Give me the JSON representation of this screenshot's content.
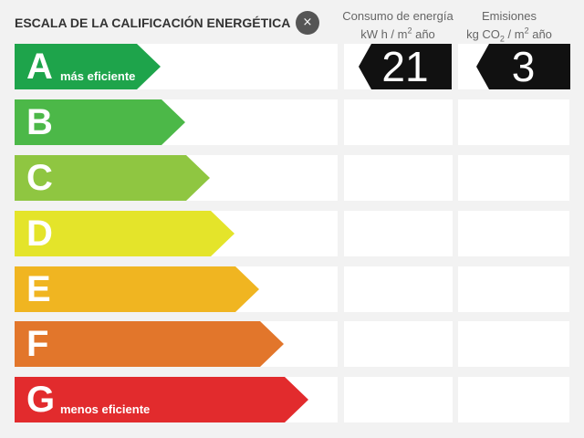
{
  "title": "ESCALA DE LA CALIFICACIÓN ENERGÉTICA",
  "close_label": "×",
  "columns": {
    "consumo": {
      "line1": "Consumo de energía",
      "unit_a": "kW h  / m",
      "unit_sup": "2",
      "unit_b": " año",
      "value": "21"
    },
    "emisiones": {
      "line1": "Emisiones",
      "unit_a": "kg CO",
      "unit_sub": "2",
      "unit_b": "  / m",
      "unit_sup": "2",
      "unit_c": " año",
      "value": "3"
    }
  },
  "ratings": [
    {
      "letter": "A",
      "sublabel": "más eficiente",
      "color": "#1ea44b"
    },
    {
      "letter": "B",
      "sublabel": "",
      "color": "#4cb848"
    },
    {
      "letter": "C",
      "sublabel": "",
      "color": "#8fc641"
    },
    {
      "letter": "D",
      "sublabel": "",
      "color": "#e4e42a"
    },
    {
      "letter": "E",
      "sublabel": "",
      "color": "#f0b521"
    },
    {
      "letter": "F",
      "sublabel": "",
      "color": "#e2762b"
    },
    {
      "letter": "G",
      "sublabel": "menos eficiente",
      "color": "#e22b2d"
    }
  ]
}
